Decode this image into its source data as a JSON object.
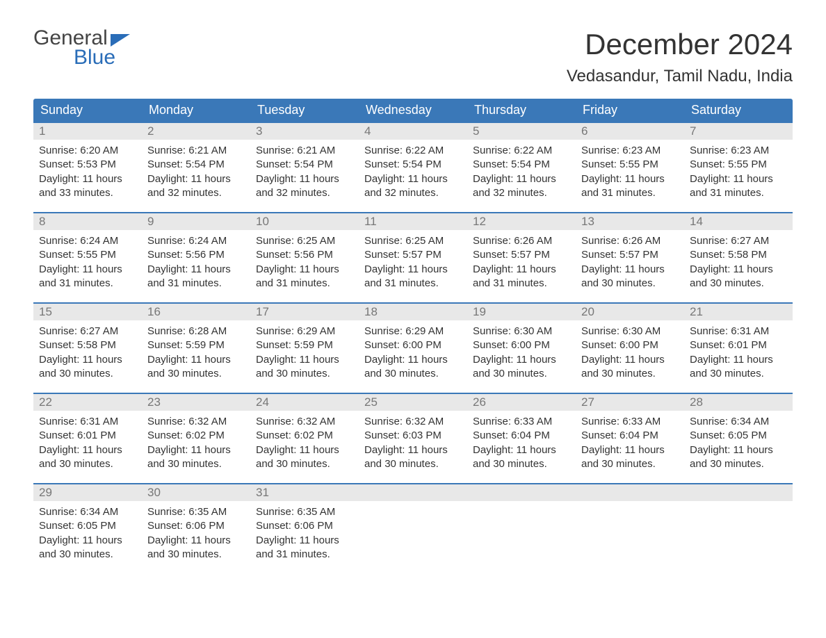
{
  "logo": {
    "word1": "General",
    "word2": "Blue"
  },
  "title": "December 2024",
  "location": "Vedasandur, Tamil Nadu, India",
  "colors": {
    "header_bg": "#3a78b8",
    "header_text": "#ffffff",
    "daynum_bg": "#e8e8e8",
    "daynum_text": "#777777",
    "week_border": "#3a78b8",
    "logo_blue": "#2a6db8",
    "body_text": "#333333",
    "background": "#ffffff"
  },
  "typography": {
    "title_fontsize": 42,
    "location_fontsize": 24,
    "dayheader_fontsize": 18,
    "daynum_fontsize": 17,
    "content_fontsize": 15,
    "logo_fontsize": 30
  },
  "day_labels": [
    "Sunday",
    "Monday",
    "Tuesday",
    "Wednesday",
    "Thursday",
    "Friday",
    "Saturday"
  ],
  "weeks": [
    [
      {
        "n": "1",
        "sunrise": "Sunrise: 6:20 AM",
        "sunset": "Sunset: 5:53 PM",
        "d1": "Daylight: 11 hours",
        "d2": "and 33 minutes."
      },
      {
        "n": "2",
        "sunrise": "Sunrise: 6:21 AM",
        "sunset": "Sunset: 5:54 PM",
        "d1": "Daylight: 11 hours",
        "d2": "and 32 minutes."
      },
      {
        "n": "3",
        "sunrise": "Sunrise: 6:21 AM",
        "sunset": "Sunset: 5:54 PM",
        "d1": "Daylight: 11 hours",
        "d2": "and 32 minutes."
      },
      {
        "n": "4",
        "sunrise": "Sunrise: 6:22 AM",
        "sunset": "Sunset: 5:54 PM",
        "d1": "Daylight: 11 hours",
        "d2": "and 32 minutes."
      },
      {
        "n": "5",
        "sunrise": "Sunrise: 6:22 AM",
        "sunset": "Sunset: 5:54 PM",
        "d1": "Daylight: 11 hours",
        "d2": "and 32 minutes."
      },
      {
        "n": "6",
        "sunrise": "Sunrise: 6:23 AM",
        "sunset": "Sunset: 5:55 PM",
        "d1": "Daylight: 11 hours",
        "d2": "and 31 minutes."
      },
      {
        "n": "7",
        "sunrise": "Sunrise: 6:23 AM",
        "sunset": "Sunset: 5:55 PM",
        "d1": "Daylight: 11 hours",
        "d2": "and 31 minutes."
      }
    ],
    [
      {
        "n": "8",
        "sunrise": "Sunrise: 6:24 AM",
        "sunset": "Sunset: 5:55 PM",
        "d1": "Daylight: 11 hours",
        "d2": "and 31 minutes."
      },
      {
        "n": "9",
        "sunrise": "Sunrise: 6:24 AM",
        "sunset": "Sunset: 5:56 PM",
        "d1": "Daylight: 11 hours",
        "d2": "and 31 minutes."
      },
      {
        "n": "10",
        "sunrise": "Sunrise: 6:25 AM",
        "sunset": "Sunset: 5:56 PM",
        "d1": "Daylight: 11 hours",
        "d2": "and 31 minutes."
      },
      {
        "n": "11",
        "sunrise": "Sunrise: 6:25 AM",
        "sunset": "Sunset: 5:57 PM",
        "d1": "Daylight: 11 hours",
        "d2": "and 31 minutes."
      },
      {
        "n": "12",
        "sunrise": "Sunrise: 6:26 AM",
        "sunset": "Sunset: 5:57 PM",
        "d1": "Daylight: 11 hours",
        "d2": "and 31 minutes."
      },
      {
        "n": "13",
        "sunrise": "Sunrise: 6:26 AM",
        "sunset": "Sunset: 5:57 PM",
        "d1": "Daylight: 11 hours",
        "d2": "and 30 minutes."
      },
      {
        "n": "14",
        "sunrise": "Sunrise: 6:27 AM",
        "sunset": "Sunset: 5:58 PM",
        "d1": "Daylight: 11 hours",
        "d2": "and 30 minutes."
      }
    ],
    [
      {
        "n": "15",
        "sunrise": "Sunrise: 6:27 AM",
        "sunset": "Sunset: 5:58 PM",
        "d1": "Daylight: 11 hours",
        "d2": "and 30 minutes."
      },
      {
        "n": "16",
        "sunrise": "Sunrise: 6:28 AM",
        "sunset": "Sunset: 5:59 PM",
        "d1": "Daylight: 11 hours",
        "d2": "and 30 minutes."
      },
      {
        "n": "17",
        "sunrise": "Sunrise: 6:29 AM",
        "sunset": "Sunset: 5:59 PM",
        "d1": "Daylight: 11 hours",
        "d2": "and 30 minutes."
      },
      {
        "n": "18",
        "sunrise": "Sunrise: 6:29 AM",
        "sunset": "Sunset: 6:00 PM",
        "d1": "Daylight: 11 hours",
        "d2": "and 30 minutes."
      },
      {
        "n": "19",
        "sunrise": "Sunrise: 6:30 AM",
        "sunset": "Sunset: 6:00 PM",
        "d1": "Daylight: 11 hours",
        "d2": "and 30 minutes."
      },
      {
        "n": "20",
        "sunrise": "Sunrise: 6:30 AM",
        "sunset": "Sunset: 6:00 PM",
        "d1": "Daylight: 11 hours",
        "d2": "and 30 minutes."
      },
      {
        "n": "21",
        "sunrise": "Sunrise: 6:31 AM",
        "sunset": "Sunset: 6:01 PM",
        "d1": "Daylight: 11 hours",
        "d2": "and 30 minutes."
      }
    ],
    [
      {
        "n": "22",
        "sunrise": "Sunrise: 6:31 AM",
        "sunset": "Sunset: 6:01 PM",
        "d1": "Daylight: 11 hours",
        "d2": "and 30 minutes."
      },
      {
        "n": "23",
        "sunrise": "Sunrise: 6:32 AM",
        "sunset": "Sunset: 6:02 PM",
        "d1": "Daylight: 11 hours",
        "d2": "and 30 minutes."
      },
      {
        "n": "24",
        "sunrise": "Sunrise: 6:32 AM",
        "sunset": "Sunset: 6:02 PM",
        "d1": "Daylight: 11 hours",
        "d2": "and 30 minutes."
      },
      {
        "n": "25",
        "sunrise": "Sunrise: 6:32 AM",
        "sunset": "Sunset: 6:03 PM",
        "d1": "Daylight: 11 hours",
        "d2": "and 30 minutes."
      },
      {
        "n": "26",
        "sunrise": "Sunrise: 6:33 AM",
        "sunset": "Sunset: 6:04 PM",
        "d1": "Daylight: 11 hours",
        "d2": "and 30 minutes."
      },
      {
        "n": "27",
        "sunrise": "Sunrise: 6:33 AM",
        "sunset": "Sunset: 6:04 PM",
        "d1": "Daylight: 11 hours",
        "d2": "and 30 minutes."
      },
      {
        "n": "28",
        "sunrise": "Sunrise: 6:34 AM",
        "sunset": "Sunset: 6:05 PM",
        "d1": "Daylight: 11 hours",
        "d2": "and 30 minutes."
      }
    ],
    [
      {
        "n": "29",
        "sunrise": "Sunrise: 6:34 AM",
        "sunset": "Sunset: 6:05 PM",
        "d1": "Daylight: 11 hours",
        "d2": "and 30 minutes."
      },
      {
        "n": "30",
        "sunrise": "Sunrise: 6:35 AM",
        "sunset": "Sunset: 6:06 PM",
        "d1": "Daylight: 11 hours",
        "d2": "and 30 minutes."
      },
      {
        "n": "31",
        "sunrise": "Sunrise: 6:35 AM",
        "sunset": "Sunset: 6:06 PM",
        "d1": "Daylight: 11 hours",
        "d2": "and 31 minutes."
      },
      {
        "n": "",
        "sunrise": "",
        "sunset": "",
        "d1": "",
        "d2": ""
      },
      {
        "n": "",
        "sunrise": "",
        "sunset": "",
        "d1": "",
        "d2": ""
      },
      {
        "n": "",
        "sunrise": "",
        "sunset": "",
        "d1": "",
        "d2": ""
      },
      {
        "n": "",
        "sunrise": "",
        "sunset": "",
        "d1": "",
        "d2": ""
      }
    ]
  ]
}
